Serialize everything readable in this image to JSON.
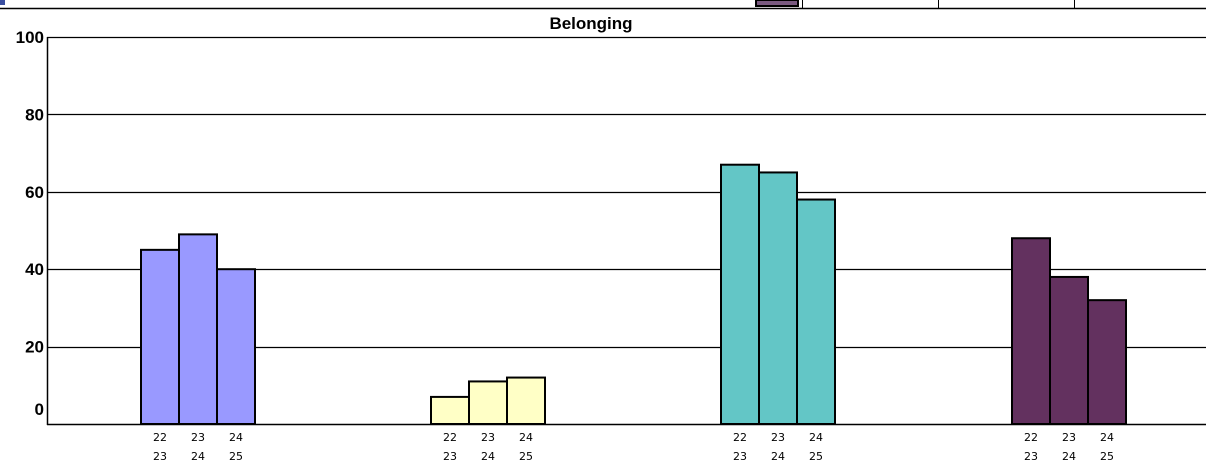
{
  "header_strip": {
    "legend_swatch_color": "#7a5a80"
  },
  "chart_data": {
    "type": "bar",
    "title": "Belonging",
    "xlabel": "",
    "ylabel": "",
    "ylim": [
      0,
      100
    ],
    "yticks": [
      0,
      20,
      40,
      60,
      80,
      100
    ],
    "grid": true,
    "period_labels": [
      [
        "22",
        "23"
      ],
      [
        "23",
        "24"
      ],
      [
        "24",
        "25"
      ]
    ],
    "groups": [
      {
        "color": "#9999ff",
        "values": [
          45,
          49,
          40
        ]
      },
      {
        "color": "#ffffc6",
        "values": [
          7,
          11,
          12
        ]
      },
      {
        "color": "#63c6c6",
        "values": [
          67,
          65,
          58
        ]
      },
      {
        "color": "#63315f",
        "values": [
          48,
          38,
          32
        ]
      }
    ]
  }
}
